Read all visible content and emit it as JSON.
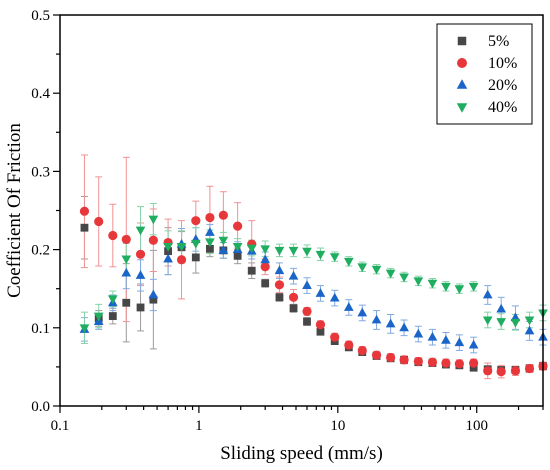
{
  "chart_data": {
    "type": "scatter",
    "xlabel": "Sliding speed (mm/s)",
    "ylabel": "Coefficient Of Friction",
    "xscale": "log",
    "xlim": [
      0.1,
      300
    ],
    "ylim": [
      0.0,
      0.5
    ],
    "x_ticks": [
      0.1,
      1,
      10,
      100
    ],
    "x_tick_labels": [
      "0.1",
      "1",
      "10",
      "100"
    ],
    "y_ticks": [
      0.0,
      0.1,
      0.2,
      0.3,
      0.4,
      0.5
    ],
    "y_tick_labels": [
      "0.0",
      "0.1",
      "0.2",
      "0.3",
      "0.4",
      "0.5"
    ],
    "grid": false,
    "legend_position": "top-right",
    "x": [
      0.15,
      0.19,
      0.24,
      0.3,
      0.38,
      0.47,
      0.6,
      0.75,
      0.95,
      1.2,
      1.5,
      1.9,
      2.4,
      3.0,
      3.8,
      4.8,
      6.0,
      7.5,
      9.5,
      12,
      15,
      19,
      24,
      30,
      38,
      48,
      60,
      75,
      95,
      120,
      150,
      190,
      240,
      300
    ],
    "series": [
      {
        "name": "5%",
        "marker": "square",
        "color": "#474747",
        "values": [
          0.228,
          0.112,
          0.115,
          0.132,
          0.126,
          0.136,
          0.198,
          0.203,
          0.19,
          0.201,
          0.199,
          0.192,
          0.173,
          0.157,
          0.139,
          0.125,
          0.108,
          0.095,
          0.083,
          0.075,
          0.069,
          0.064,
          0.061,
          0.059,
          0.056,
          0.055,
          0.053,
          0.052,
          0.049,
          0.047,
          0.046,
          0.046,
          0.048,
          0.051
        ],
        "errors": [
          0.04,
          0.01,
          0.01,
          0.05,
          0.03,
          0.063,
          0.03,
          0.02,
          0.02,
          0.01,
          0.01,
          0.01,
          0.01,
          0.005,
          0.005,
          0.005,
          0.005,
          0.004,
          0.004,
          0.004,
          0.004,
          0.004,
          0.004,
          0.004,
          0.004,
          0.004,
          0.004,
          0.004,
          0.004,
          0.004,
          0.004,
          0.004,
          0.004,
          0.004
        ]
      },
      {
        "name": "10%",
        "marker": "circle",
        "color": "#e8373a",
        "values": [
          0.249,
          0.236,
          0.218,
          0.213,
          0.194,
          0.212,
          0.209,
          0.187,
          0.237,
          0.241,
          0.244,
          0.23,
          0.207,
          0.178,
          0.155,
          0.139,
          0.121,
          0.104,
          0.088,
          0.078,
          0.071,
          0.065,
          0.062,
          0.059,
          0.057,
          0.056,
          0.055,
          0.054,
          0.055,
          0.045,
          0.044,
          0.045,
          0.048,
          0.051
        ],
        "errors": [
          0.072,
          0.057,
          0.04,
          0.105,
          0.04,
          0.04,
          0.03,
          0.05,
          0.025,
          0.04,
          0.03,
          0.03,
          0.03,
          0.01,
          0.01,
          0.01,
          0.005,
          0.005,
          0.005,
          0.005,
          0.005,
          0.005,
          0.005,
          0.005,
          0.005,
          0.005,
          0.005,
          0.005,
          0.005,
          0.01,
          0.008,
          0.006,
          0.005,
          0.005
        ]
      },
      {
        "name": "20%",
        "marker": "triangle-up",
        "color": "#1b65c9",
        "values": [
          0.098,
          0.108,
          0.132,
          0.17,
          0.167,
          0.142,
          0.188,
          0.207,
          0.213,
          0.222,
          0.199,
          0.2,
          0.198,
          0.187,
          0.173,
          0.166,
          0.154,
          0.144,
          0.138,
          0.126,
          0.119,
          0.11,
          0.105,
          0.1,
          0.092,
          0.088,
          0.084,
          0.081,
          0.078,
          0.142,
          0.124,
          0.113,
          0.096,
          0.088
        ],
        "errors": [
          0.015,
          0.01,
          0.01,
          0.02,
          0.02,
          0.02,
          0.02,
          0.02,
          0.015,
          0.01,
          0.01,
          0.01,
          0.01,
          0.01,
          0.01,
          0.01,
          0.01,
          0.01,
          0.01,
          0.01,
          0.01,
          0.012,
          0.012,
          0.01,
          0.01,
          0.01,
          0.01,
          0.01,
          0.01,
          0.012,
          0.015,
          0.015,
          0.012,
          0.01
        ]
      },
      {
        "name": "40%",
        "marker": "triangle-down",
        "color": "#1fad60",
        "values": [
          0.1,
          0.115,
          0.137,
          0.188,
          0.225,
          0.239,
          0.204,
          0.204,
          0.208,
          0.21,
          0.212,
          0.204,
          0.202,
          0.201,
          0.199,
          0.199,
          0.198,
          0.194,
          0.191,
          0.185,
          0.178,
          0.175,
          0.17,
          0.165,
          0.16,
          0.157,
          0.153,
          0.15,
          0.153,
          0.11,
          0.108,
          0.107,
          0.11,
          0.119
        ],
        "errors": [
          0.02,
          0.015,
          0.01,
          0.02,
          0.03,
          0.02,
          0.02,
          0.02,
          0.02,
          0.015,
          0.01,
          0.01,
          0.01,
          0.01,
          0.008,
          0.008,
          0.008,
          0.008,
          0.006,
          0.006,
          0.006,
          0.006,
          0.006,
          0.006,
          0.006,
          0.006,
          0.006,
          0.006,
          0.006,
          0.01,
          0.01,
          0.01,
          0.01,
          0.01
        ]
      }
    ]
  }
}
